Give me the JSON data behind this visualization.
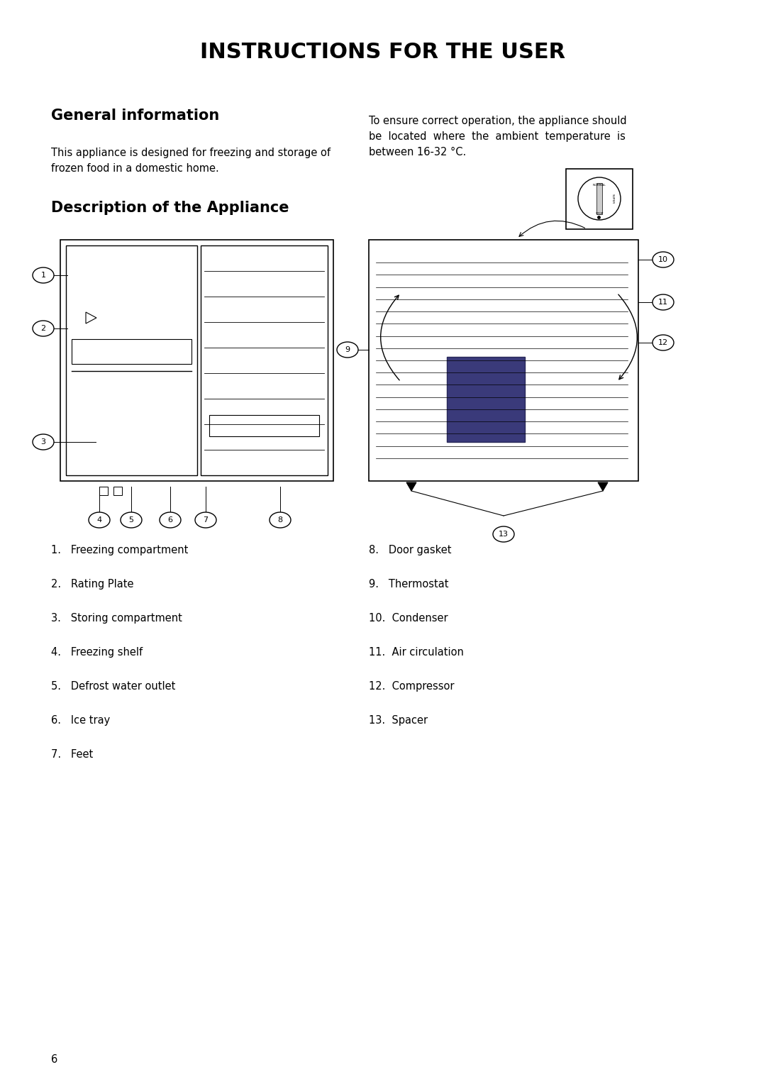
{
  "title": "INSTRUCTIONS FOR THE USER",
  "section1_header": "General information",
  "section1_left": "This appliance is designed for freezing and storage of\nfrozen food in a domestic home.",
  "section1_right": "To ensure correct operation, the appliance should\nbe  located  where  the  ambient  temperature  is\nbetween 16-32 °C.",
  "section2_header": "Description of the Appliance",
  "items_left": [
    "1.   Freezing compartment",
    "2.   Rating Plate",
    "3.   Storing compartment",
    "4.   Freezing shelf",
    "5.   Defrost water outlet",
    "6.   Ice tray",
    "7.   Feet"
  ],
  "items_right": [
    "8.   Door gasket",
    "9.   Thermostat",
    "10.  Condenser",
    "11.  Air circulation",
    "12.  Compressor",
    "13.  Spacer"
  ],
  "page_number": "6",
  "bg_color": "#ffffff",
  "text_color": "#000000",
  "compressor_color": "#3a3a7a",
  "compressor_edge_color": "#2a2a5a"
}
